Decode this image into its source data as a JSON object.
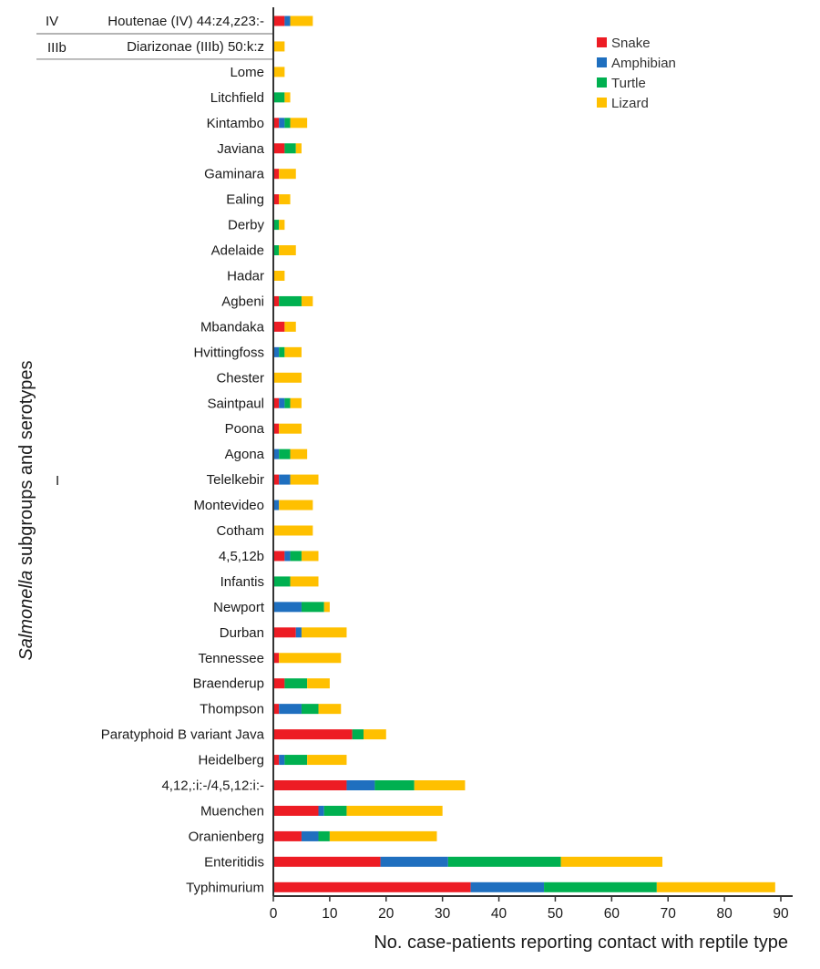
{
  "chart_data": {
    "type": "bar",
    "orientation": "horizontal",
    "stacked": true,
    "title": "",
    "xlabel": "No. case-patients reporting contact with reptile type",
    "ylabel_italic": "Salmonella",
    "ylabel_rest": " subgroups and serotypes",
    "xlim": [
      0,
      90
    ],
    "xticks": [
      0,
      10,
      20,
      30,
      40,
      50,
      60,
      70,
      80,
      90
    ],
    "grid": false,
    "legend_position": "top-right",
    "categories": [
      "Houtenae  (IV) 44:z4,z23:-",
      "Diarizonae  (IIIb) 50:k:z",
      "Lome",
      "Litchfield",
      "Kintambo",
      "Javiana",
      "Gaminara",
      "Ealing",
      "Derby",
      "Adelaide",
      "Hadar",
      "Agbeni",
      "Mbandaka",
      "Hvittingfoss",
      "Chester",
      "Saintpaul",
      "Poona",
      "Agona",
      "Telelkebir",
      "Montevideo",
      "Cotham",
      "4,5,12b",
      "Infantis",
      "Newport",
      "Durban",
      "Tennessee",
      "Braenderup",
      "Thompson",
      "Paratyphoid B variant Java",
      "Heidelberg",
      "4,12,:i:-/4,5,12:i:-",
      "Muenchen",
      "Oranienberg",
      "Enteritidis",
      "Typhimurium"
    ],
    "series": [
      {
        "name": "Snake",
        "color": "#ed1c24",
        "values": [
          2,
          0,
          0,
          0,
          1,
          2,
          1,
          1,
          0,
          0,
          0,
          1,
          2,
          0,
          0,
          1,
          1,
          0,
          1,
          0,
          0,
          2,
          0,
          0,
          4,
          1,
          2,
          1,
          14,
          1,
          13,
          8,
          5,
          19,
          35
        ]
      },
      {
        "name": "Amphibian",
        "color": "#1f6fbf",
        "values": [
          1,
          0,
          0,
          0,
          1,
          0,
          0,
          0,
          0,
          0,
          0,
          0,
          0,
          1,
          0,
          1,
          0,
          1,
          2,
          1,
          0,
          1,
          0,
          5,
          1,
          0,
          0,
          4,
          0,
          1,
          5,
          1,
          3,
          12,
          13
        ]
      },
      {
        "name": "Turtle",
        "color": "#00b050",
        "values": [
          0,
          0,
          0,
          2,
          1,
          2,
          0,
          0,
          1,
          1,
          0,
          4,
          0,
          1,
          0,
          1,
          0,
          2,
          0,
          0,
          0,
          2,
          3,
          4,
          0,
          0,
          4,
          3,
          2,
          4,
          7,
          4,
          2,
          20,
          20
        ]
      },
      {
        "name": "Lizard",
        "color": "#ffc000",
        "values": [
          4,
          2,
          2,
          1,
          3,
          1,
          3,
          2,
          1,
          3,
          2,
          2,
          2,
          3,
          5,
          2,
          4,
          3,
          5,
          6,
          7,
          3,
          5,
          1,
          8,
          11,
          4,
          4,
          4,
          7,
          9,
          17,
          19,
          18,
          21
        ]
      }
    ],
    "subgroups": [
      {
        "label": "IV",
        "categories": [
          "Houtenae  (IV) 44:z4,z23:-"
        ]
      },
      {
        "label": "IIIb",
        "categories": [
          "Diarizonae  (IIIb) 50:k:z"
        ]
      },
      {
        "label": "I",
        "categories_from": "Lome",
        "categories_to": "Typhimurium"
      }
    ]
  }
}
